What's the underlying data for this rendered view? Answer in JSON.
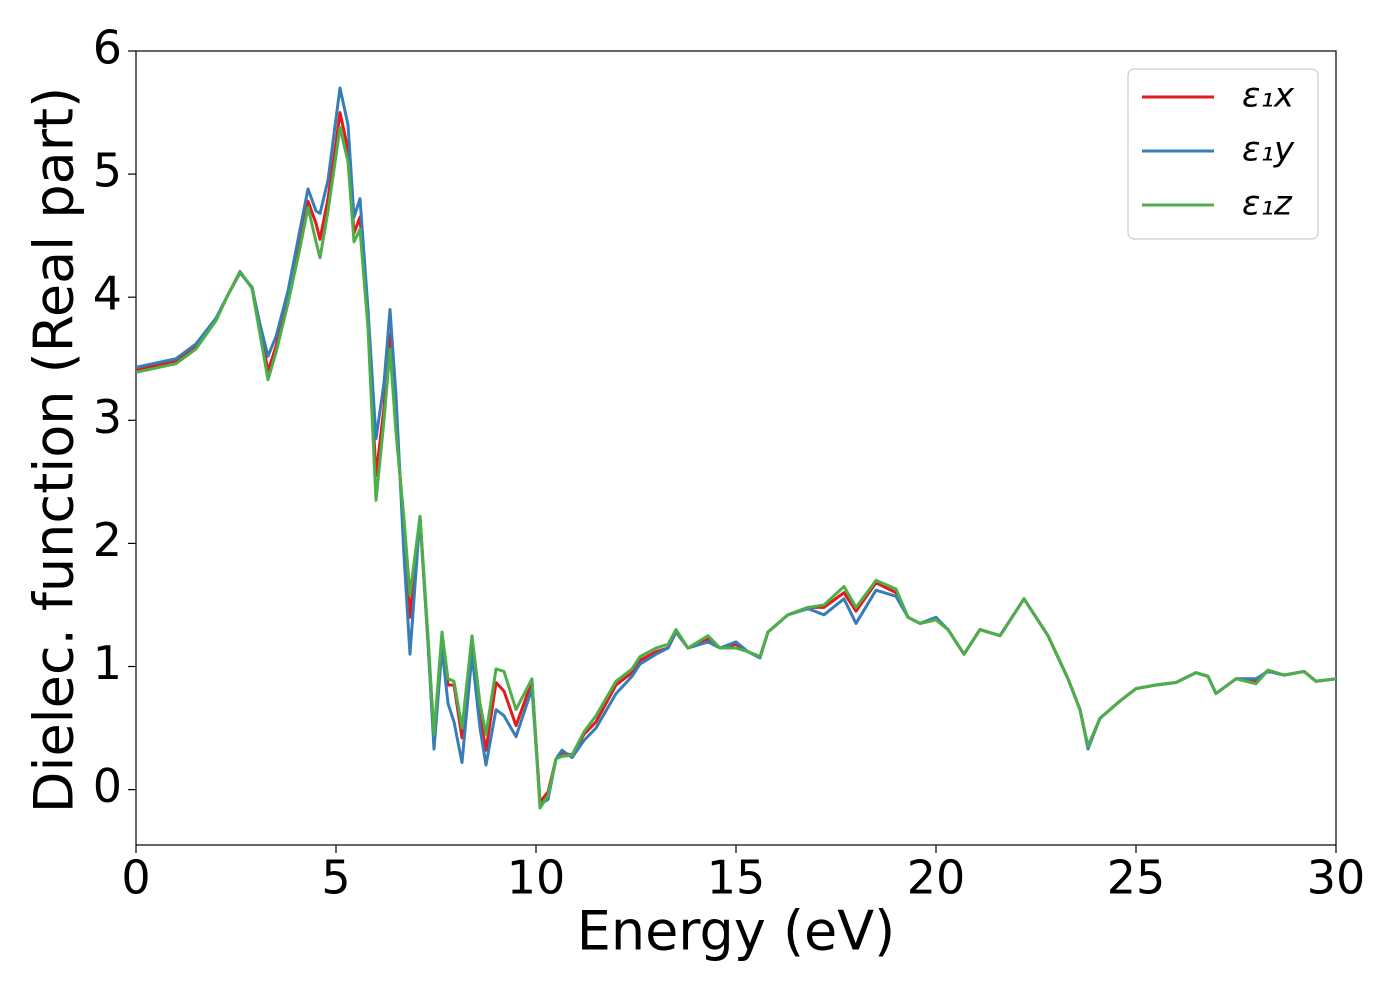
{
  "chart_data": {
    "type": "line",
    "xlabel": "Energy (eV)",
    "ylabel": "Dielec. function (Real part)",
    "x": [
      0,
      1,
      1.5,
      2.0,
      2.3,
      2.6,
      2.9,
      3.1,
      3.3,
      3.5,
      3.8,
      4.1,
      4.3,
      4.5,
      4.6,
      4.8,
      5.0,
      5.1,
      5.3,
      5.45,
      5.6,
      5.8,
      6.0,
      6.2,
      6.35,
      6.5,
      6.7,
      6.85,
      7.1,
      7.3,
      7.45,
      7.65,
      7.8,
      7.95,
      8.15,
      8.4,
      8.6,
      8.75,
      9.0,
      9.2,
      9.5,
      9.9,
      10.1,
      10.3,
      10.5,
      10.65,
      10.9,
      11.2,
      11.5,
      12.0,
      12.4,
      12.6,
      13.0,
      13.3,
      13.5,
      13.8,
      14.3,
      14.6,
      15.0,
      15.3,
      15.6,
      15.8,
      16.3,
      16.8,
      17.2,
      17.7,
      18.0,
      18.5,
      19.0,
      19.3,
      19.6,
      20.0,
      20.3,
      20.7,
      21.1,
      21.6,
      22.2,
      22.8,
      23.3,
      23.6,
      23.8,
      24.1,
      24.6,
      25.0,
      25.5,
      26.0,
      26.5,
      26.8,
      27.0,
      27.5,
      28.0,
      28.3,
      28.7,
      29.2,
      29.5,
      30
    ],
    "series": [
      {
        "name": "ε₁x",
        "color": "#e41a1c",
        "values": [
          3.41,
          3.48,
          3.6,
          3.82,
          4.02,
          4.2,
          4.08,
          3.75,
          3.4,
          3.6,
          4.0,
          4.45,
          4.78,
          4.6,
          4.47,
          4.8,
          5.25,
          5.5,
          5.2,
          4.52,
          4.65,
          3.8,
          2.55,
          3.1,
          3.7,
          3.0,
          2.1,
          1.4,
          2.2,
          1.2,
          0.38,
          1.25,
          0.85,
          0.85,
          0.42,
          1.2,
          0.6,
          0.32,
          0.87,
          0.8,
          0.52,
          0.88,
          -0.1,
          -0.02,
          0.25,
          0.3,
          0.28,
          0.45,
          0.55,
          0.85,
          0.95,
          1.05,
          1.12,
          1.15,
          1.28,
          1.15,
          1.22,
          1.15,
          1.18,
          1.12,
          1.08,
          1.28,
          1.42,
          1.48,
          1.48,
          1.6,
          1.45,
          1.68,
          1.6,
          1.4,
          1.35,
          1.38,
          1.3,
          1.1,
          1.3,
          1.25,
          1.55,
          1.25,
          0.9,
          0.65,
          0.35,
          0.58,
          0.72,
          0.82,
          0.85,
          0.87,
          0.95,
          0.92,
          0.78,
          0.9,
          0.88,
          0.97,
          0.93,
          0.96,
          0.88,
          0.9
        ]
      },
      {
        "name": "ε₁y",
        "color": "#377eb8",
        "values": [
          3.43,
          3.5,
          3.62,
          3.83,
          4.02,
          4.2,
          4.08,
          3.78,
          3.52,
          3.68,
          4.05,
          4.55,
          4.88,
          4.7,
          4.68,
          4.95,
          5.45,
          5.7,
          5.4,
          4.65,
          4.8,
          3.9,
          2.85,
          3.3,
          3.9,
          3.2,
          1.9,
          1.1,
          2.22,
          1.2,
          0.33,
          1.15,
          0.7,
          0.55,
          0.22,
          1.1,
          0.5,
          0.2,
          0.65,
          0.6,
          0.43,
          0.82,
          -0.12,
          -0.08,
          0.25,
          0.32,
          0.26,
          0.4,
          0.5,
          0.78,
          0.92,
          1.02,
          1.1,
          1.15,
          1.28,
          1.15,
          1.2,
          1.15,
          1.2,
          1.12,
          1.07,
          1.28,
          1.42,
          1.47,
          1.42,
          1.55,
          1.35,
          1.62,
          1.57,
          1.4,
          1.35,
          1.4,
          1.3,
          1.1,
          1.3,
          1.25,
          1.55,
          1.25,
          0.9,
          0.65,
          0.33,
          0.58,
          0.72,
          0.82,
          0.85,
          0.87,
          0.95,
          0.92,
          0.78,
          0.9,
          0.9,
          0.96,
          0.93,
          0.96,
          0.88,
          0.9
        ]
      },
      {
        "name": "ε₁z",
        "color": "#4daf4a",
        "values": [
          3.39,
          3.46,
          3.58,
          3.81,
          4.02,
          4.21,
          4.07,
          3.7,
          3.33,
          3.55,
          3.95,
          4.4,
          4.73,
          4.45,
          4.32,
          4.7,
          5.15,
          5.38,
          5.1,
          4.45,
          4.55,
          3.75,
          2.35,
          3.0,
          3.58,
          2.9,
          2.2,
          1.58,
          2.22,
          1.25,
          0.45,
          1.28,
          0.9,
          0.88,
          0.5,
          1.25,
          0.7,
          0.45,
          0.98,
          0.96,
          0.65,
          0.9,
          -0.15,
          -0.05,
          0.25,
          0.27,
          0.28,
          0.47,
          0.6,
          0.88,
          0.98,
          1.08,
          1.15,
          1.18,
          1.3,
          1.15,
          1.25,
          1.15,
          1.15,
          1.12,
          1.08,
          1.28,
          1.42,
          1.48,
          1.5,
          1.65,
          1.48,
          1.7,
          1.63,
          1.4,
          1.35,
          1.38,
          1.3,
          1.1,
          1.3,
          1.25,
          1.55,
          1.25,
          0.9,
          0.65,
          0.35,
          0.58,
          0.72,
          0.82,
          0.85,
          0.87,
          0.95,
          0.92,
          0.78,
          0.9,
          0.86,
          0.97,
          0.93,
          0.96,
          0.88,
          0.9
        ]
      }
    ],
    "xlim": [
      0,
      30
    ],
    "xticks": [
      0,
      5,
      10,
      15,
      20,
      25,
      30
    ],
    "ylim": [
      -0.45,
      6
    ],
    "yticks": [
      0,
      1,
      2,
      3,
      4,
      5,
      6
    ],
    "grid": false,
    "legend": "upper right"
  }
}
